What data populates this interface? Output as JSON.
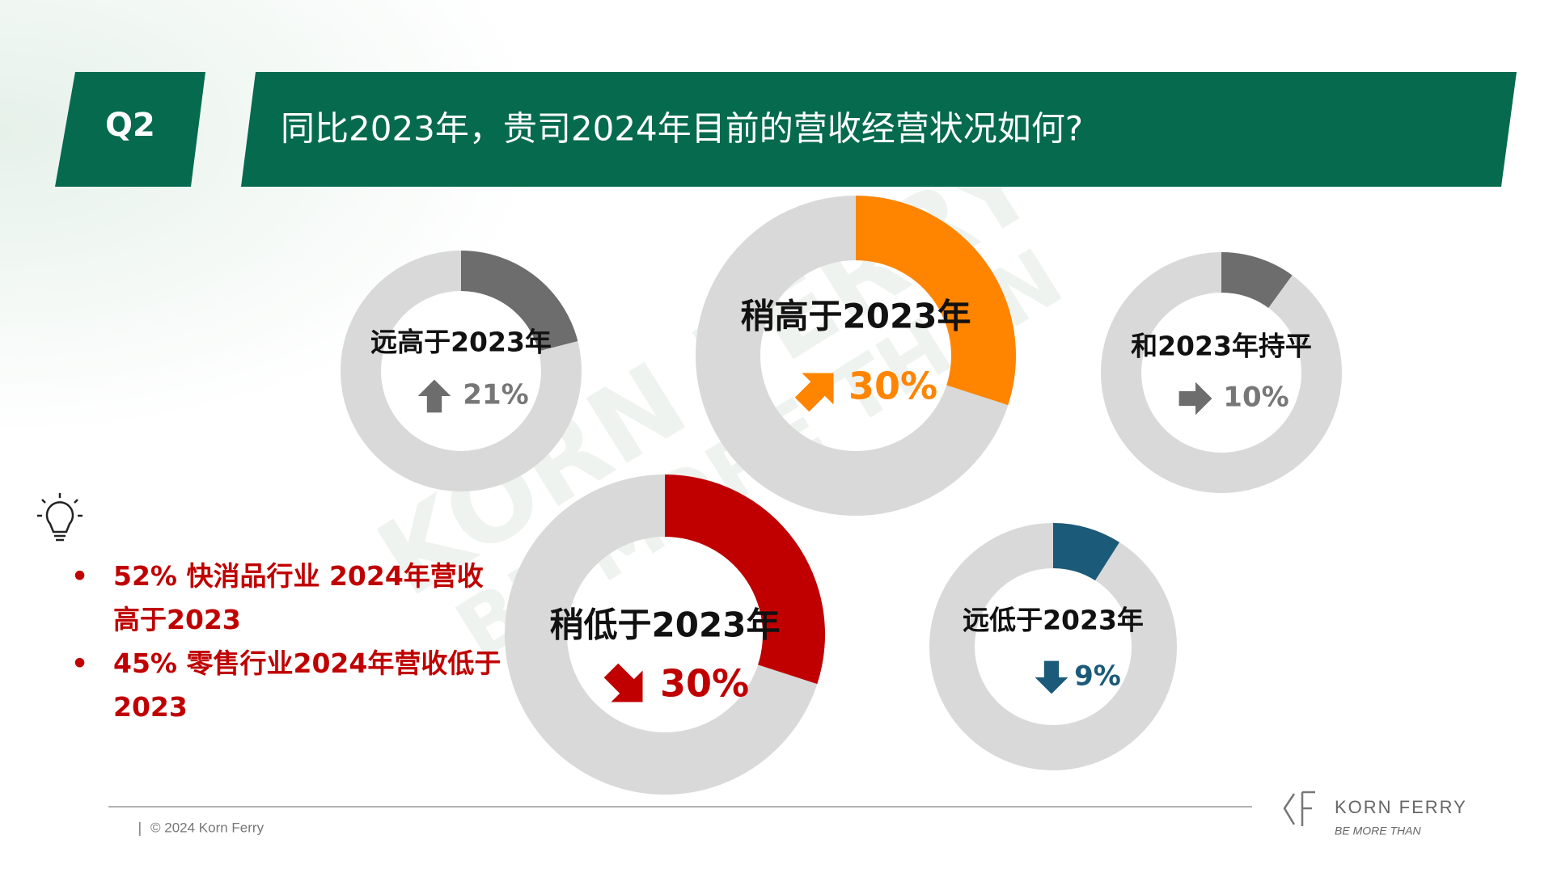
{
  "header": {
    "badge": "Q2",
    "title": "同比2023年，贵司2024年目前的营收经营状况如何?"
  },
  "chart_data": [
    {
      "type": "donut",
      "categories": [
        "远高于2023年"
      ],
      "values": [
        21
      ],
      "value_labels": [
        "21%"
      ],
      "color": "#6d6d6d"
    },
    {
      "type": "donut",
      "categories": [
        "稍高于2023年"
      ],
      "values": [
        30
      ],
      "value_labels": [
        "30%"
      ],
      "color": "#ff8500"
    },
    {
      "type": "donut",
      "categories": [
        "和2023年持平"
      ],
      "values": [
        10
      ],
      "value_labels": [
        "10%"
      ],
      "color": "#6d6d6d"
    },
    {
      "type": "donut",
      "categories": [
        "稍低于2023年"
      ],
      "values": [
        30
      ],
      "value_labels": [
        "30%"
      ],
      "color": "#c00000"
    },
    {
      "type": "donut",
      "categories": [
        "远低于2023年"
      ],
      "values": [
        9
      ],
      "value_labels": [
        "9%"
      ],
      "color": "#1b5a78"
    }
  ],
  "notes": [
    "52% 快消品行业 2024年营收高于2023",
    "45% 零售行业2024年营收低于2023"
  ],
  "footer": {
    "copyright": "© 2024 Korn Ferry",
    "brand": "KORN FERRY",
    "tagline": "BE MORE THAN"
  }
}
